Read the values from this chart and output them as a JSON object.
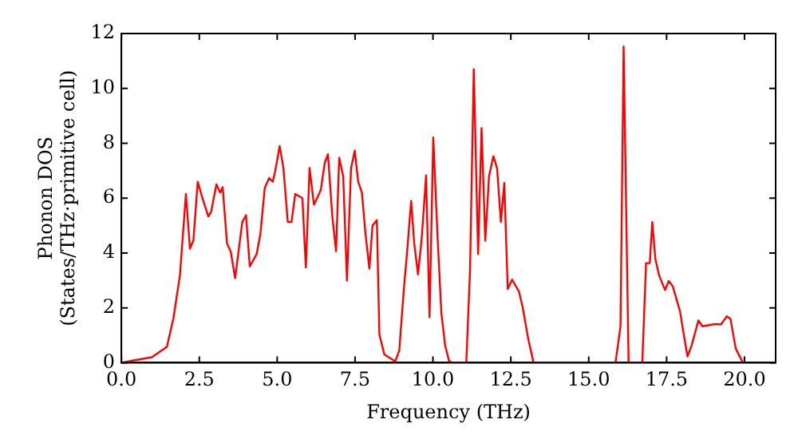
{
  "chart_data": {
    "type": "line",
    "xlabel": "Frequency (THz)",
    "ylabel": "Phonon DOS\n(States/THz·primitive cell)",
    "xlim": [
      0,
      21
    ],
    "ylim": [
      0,
      12
    ],
    "xticks": [
      {
        "value": 0,
        "label": "0.0"
      },
      {
        "value": 2.5,
        "label": "2.5"
      },
      {
        "value": 5,
        "label": "5.0"
      },
      {
        "value": 7.5,
        "label": "7.5"
      },
      {
        "value": 10,
        "label": "10.0"
      },
      {
        "value": 12.5,
        "label": "12.5"
      },
      {
        "value": 15,
        "label": "15.0"
      },
      {
        "value": 17.5,
        "label": "17.5"
      },
      {
        "value": 20,
        "label": "20.0"
      }
    ],
    "yticks": [
      0,
      2,
      4,
      6,
      8,
      10,
      12
    ],
    "grid": false,
    "legend": false,
    "marker": "none",
    "line_style": "solid",
    "series": [
      {
        "color": "#ff0000",
        "x": [
          0,
          0.47,
          0.98,
          1.46,
          1.67,
          1.88,
          2.07,
          2.2,
          2.31,
          2.45,
          2.6,
          2.79,
          2.88,
          3.05,
          3.17,
          3.25,
          3.39,
          3.51,
          3.65,
          3.88,
          4.0,
          4.12,
          4.34,
          4.46,
          4.6,
          4.74,
          4.86,
          4.94,
          5.08,
          5.2,
          5.34,
          5.46,
          5.58,
          5.81,
          5.92,
          6.04,
          6.18,
          6.28,
          6.4,
          6.53,
          6.63,
          6.77,
          6.89,
          6.99,
          7.12,
          7.24,
          7.37,
          7.49,
          7.6,
          7.72,
          7.83,
          7.96,
          8.06,
          8.2,
          8.28,
          8.44,
          8.65,
          8.79,
          8.92,
          9.06,
          9.18,
          9.3,
          9.4,
          9.52,
          9.64,
          9.78,
          9.89,
          10.01,
          10.15,
          10.27,
          10.39,
          10.52,
          10.64,
          11.07,
          11.19,
          11.31,
          11.45,
          11.56,
          11.68,
          11.8,
          11.94,
          12.06,
          12.18,
          12.29,
          12.4,
          12.54,
          12.76,
          12.88,
          13.06,
          13.23,
          15.86,
          16.02,
          16.12,
          16.28,
          16.72,
          16.84,
          16.96,
          17.04,
          17.14,
          17.26,
          17.45,
          17.57,
          17.7,
          17.93,
          18.05,
          18.17,
          18.3,
          18.52,
          18.65,
          19.02,
          19.25,
          19.43,
          19.55,
          19.72,
          19.95
        ],
        "values": [
          0,
          0.1,
          0.2,
          0.58,
          1.62,
          3.2,
          6.15,
          4.16,
          4.45,
          6.6,
          6.0,
          5.33,
          5.5,
          6.5,
          6.2,
          6.4,
          4.35,
          4.05,
          3.08,
          5.13,
          5.38,
          3.51,
          3.96,
          4.68,
          6.36,
          6.73,
          6.6,
          7.0,
          7.9,
          7.1,
          5.13,
          5.13,
          6.15,
          6.0,
          3.47,
          7.1,
          5.76,
          6.0,
          6.3,
          7.3,
          7.6,
          5.33,
          4.06,
          7.47,
          6.8,
          2.99,
          7.08,
          7.73,
          6.6,
          6.2,
          4.75,
          3.43,
          5.0,
          5.2,
          1.03,
          0.3,
          0.15,
          0.05,
          0.45,
          2.6,
          4.17,
          5.9,
          4.35,
          3.22,
          4.55,
          6.83,
          1.66,
          8.21,
          4.55,
          1.81,
          0.64,
          0.05,
          0,
          0,
          3.37,
          10.7,
          3.96,
          8.55,
          4.45,
          6.8,
          7.53,
          7.08,
          5.13,
          6.55,
          2.69,
          3.03,
          2.6,
          2.02,
          0.86,
          0,
          0,
          1.33,
          11.53,
          0,
          0,
          3.63,
          3.63,
          5.13,
          3.77,
          3.18,
          2.65,
          2.98,
          2.78,
          1.87,
          1.03,
          0.23,
          0.62,
          1.54,
          1.33,
          1.4,
          1.4,
          1.69,
          1.6,
          0.51,
          0
        ]
      }
    ]
  }
}
